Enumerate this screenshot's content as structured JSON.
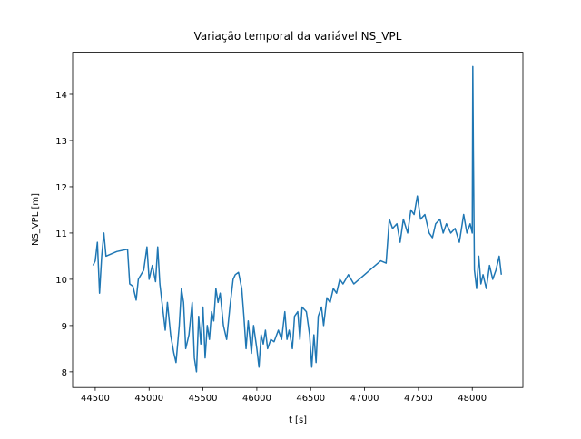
{
  "chart_data": {
    "type": "line",
    "title": "Variação temporal da variável NS_VPL",
    "xlabel": "t [s]",
    "ylabel": "NS_VPL [m]",
    "xlim": [
      44290,
      48470
    ],
    "ylim": [
      7.66,
      14.91
    ],
    "xticks": [
      44500,
      45000,
      45500,
      46000,
      46500,
      47000,
      47500,
      48000
    ],
    "yticks": [
      8,
      9,
      10,
      11,
      12,
      13,
      14
    ],
    "series": [
      {
        "color": "#1f77b4",
        "x": [
          44480,
          44500,
          44520,
          44540,
          44560,
          44580,
          44600,
          44700,
          44800,
          44820,
          44850,
          44880,
          44900,
          44950,
          44980,
          45000,
          45030,
          45060,
          45080,
          45100,
          45120,
          45150,
          45170,
          45200,
          45230,
          45250,
          45280,
          45300,
          45320,
          45340,
          45370,
          45400,
          45420,
          45440,
          45460,
          45480,
          45500,
          45520,
          45540,
          45560,
          45580,
          45600,
          45620,
          45640,
          45660,
          45690,
          45720,
          45750,
          45780,
          45800,
          45830,
          45860,
          45880,
          45900,
          45920,
          45950,
          45970,
          46000,
          46020,
          46040,
          46060,
          46080,
          46100,
          46130,
          46160,
          46200,
          46230,
          46260,
          46280,
          46300,
          46330,
          46350,
          46380,
          46400,
          46420,
          46460,
          46490,
          46510,
          46530,
          46550,
          46570,
          46600,
          46620,
          46650,
          46680,
          46710,
          46740,
          46770,
          46800,
          46850,
          46900,
          46950,
          47000,
          47050,
          47100,
          47150,
          47200,
          47230,
          47260,
          47300,
          47330,
          47360,
          47400,
          47430,
          47460,
          47490,
          47520,
          47560,
          47600,
          47630,
          47660,
          47700,
          47730,
          47760,
          47800,
          47840,
          47880,
          47920,
          47950,
          47980,
          48000,
          48005,
          48010,
          48020,
          48040,
          48060,
          48080,
          48100,
          48130,
          48160,
          48190,
          48220,
          48250,
          48270
        ],
        "values": [
          10.3,
          10.4,
          10.8,
          9.7,
          10.5,
          11.0,
          10.5,
          10.6,
          10.65,
          9.9,
          9.85,
          9.55,
          10.0,
          10.2,
          10.7,
          10.0,
          10.3,
          9.95,
          10.7,
          9.9,
          9.5,
          8.9,
          9.5,
          8.8,
          8.4,
          8.2,
          9.0,
          9.8,
          9.5,
          8.5,
          8.8,
          9.5,
          8.3,
          8.0,
          9.2,
          8.6,
          9.4,
          8.3,
          9.0,
          8.7,
          9.3,
          9.1,
          9.8,
          9.5,
          9.7,
          9.0,
          8.7,
          9.4,
          10.0,
          10.1,
          10.15,
          9.8,
          9.2,
          8.5,
          9.1,
          8.4,
          9.0,
          8.5,
          8.1,
          8.8,
          8.6,
          8.9,
          8.5,
          8.7,
          8.65,
          8.9,
          8.7,
          9.3,
          8.7,
          8.9,
          8.5,
          9.2,
          9.3,
          8.7,
          9.4,
          9.3,
          8.8,
          8.1,
          8.8,
          8.2,
          9.2,
          9.4,
          9.0,
          9.6,
          9.5,
          9.8,
          9.7,
          10.0,
          9.9,
          10.1,
          9.9,
          10.0,
          10.1,
          10.2,
          10.3,
          10.4,
          10.35,
          11.3,
          11.1,
          11.2,
          10.8,
          11.3,
          11.0,
          11.5,
          11.4,
          11.8,
          11.3,
          11.4,
          11.0,
          10.9,
          11.2,
          11.3,
          11.0,
          11.2,
          11.0,
          11.1,
          10.8,
          11.4,
          11.0,
          11.2,
          11.0,
          14.6,
          12.8,
          10.2,
          9.8,
          10.5,
          9.9,
          10.1,
          9.8,
          10.3,
          10.0,
          10.2,
          10.5,
          10.1
        ]
      }
    ]
  }
}
